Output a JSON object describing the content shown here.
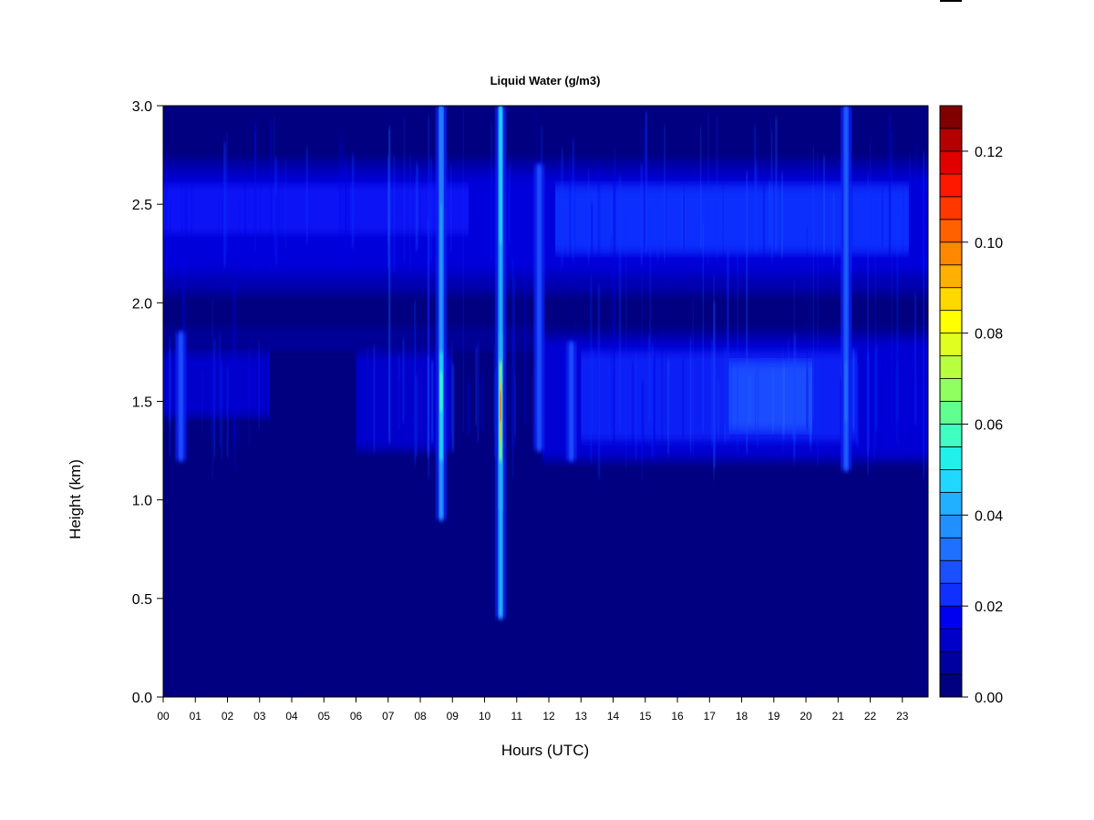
{
  "chart_data": {
    "type": "heatmap",
    "title": "Liquid Water (g/m3)",
    "xlabel": "Hours (UTC)",
    "ylabel": "Height (km)",
    "xlim": [
      0,
      23.8
    ],
    "ylim": [
      0,
      3.0
    ],
    "x_ticks": [
      "00",
      "01",
      "02",
      "03",
      "04",
      "05",
      "06",
      "07",
      "08",
      "09",
      "10",
      "11",
      "12",
      "13",
      "14",
      "15",
      "16",
      "17",
      "18",
      "19",
      "20",
      "21",
      "22",
      "23"
    ],
    "y_ticks": [
      "0.0",
      "0.5",
      "1.0",
      "1.5",
      "2.0",
      "2.5",
      "3.0"
    ],
    "colorbar": {
      "range": [
        0.0,
        0.13
      ],
      "step": 0.005,
      "tick_values": [
        0.0,
        0.02,
        0.04,
        0.06,
        0.08,
        0.1,
        0.12
      ],
      "tick_labels": [
        "0.00",
        "0.02",
        "0.04",
        "0.06",
        "0.08",
        "0.10",
        "0.12"
      ],
      "colors": [
        "#000080",
        "#0000a0",
        "#0000c8",
        "#0000f0",
        "#1030ff",
        "#1a50ff",
        "#2070ff",
        "#2090ff",
        "#20b0ff",
        "#20d8ff",
        "#20f0e8",
        "#40ffc0",
        "#60ff90",
        "#90ff60",
        "#b8ff40",
        "#e0ff20",
        "#ffff00",
        "#ffd800",
        "#ffb000",
        "#ff8800",
        "#ff6000",
        "#ff3800",
        "#ff1800",
        "#e00000",
        "#b40000",
        "#800000"
      ]
    },
    "features": [
      {
        "label": "upper cloud layer",
        "height_range_km": [
          2.1,
          2.65
        ],
        "typical_value": 0.015
      },
      {
        "label": "lower cloud layer",
        "height_range_km": [
          1.2,
          1.8
        ],
        "typical_value": 0.02
      },
      {
        "label": "column 08:40",
        "time_h": 8.65,
        "height_range_km": [
          0.9,
          3.0
        ],
        "peak_value": 0.055
      },
      {
        "label": "column 10:30",
        "time_h": 10.5,
        "height_range_km": [
          0.4,
          3.0
        ],
        "peak_value": 0.105
      }
    ]
  }
}
